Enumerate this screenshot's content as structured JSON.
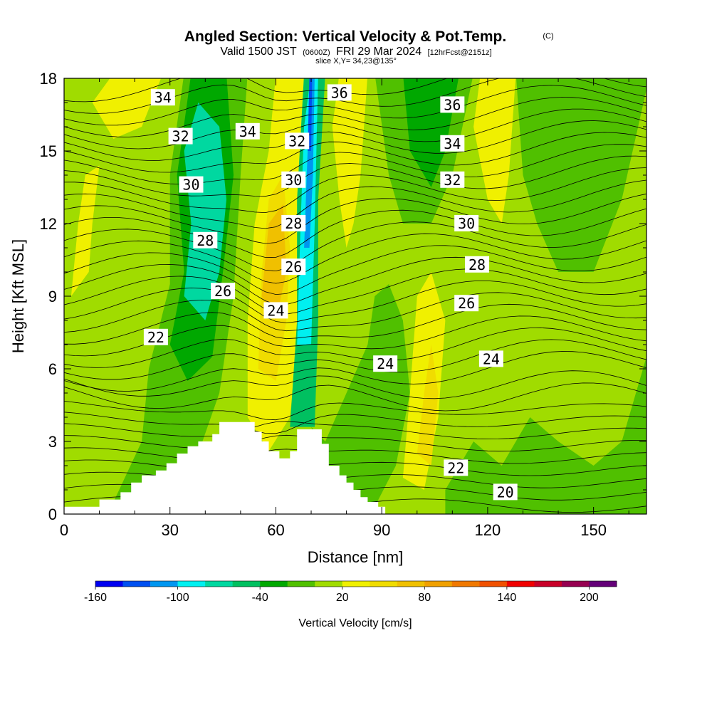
{
  "title": {
    "main": "Angled Section: Vertical Velocity & Pot.Temp.",
    "copyright": "(C)",
    "valid_prefix": "Valid 1500 JST",
    "valid_utc": "(0600Z)",
    "valid_date": "FRI 29 Mar 2024",
    "forecast": "[12hrFcst@2151z]",
    "slice": "slice X,Y= 34,23@135°"
  },
  "chart_data": {
    "type": "heatmap",
    "xlabel": "Distance [nm]",
    "ylabel": "Height [Kft MSL]",
    "xlim": [
      0,
      165
    ],
    "ylim": [
      0,
      18
    ],
    "x_ticks": [
      "0",
      "30",
      "60",
      "90",
      "120",
      "150"
    ],
    "y_ticks": [
      "0",
      "3",
      "6",
      "9",
      "12",
      "15",
      "18"
    ],
    "colorbar": {
      "label": "Vertical Velocity [cm/s]",
      "tick_labels": [
        "-160",
        "-100",
        "-40",
        "20",
        "80",
        "140",
        "200"
      ],
      "levels": [
        -160,
        -140,
        -120,
        -100,
        -80,
        -60,
        -40,
        -20,
        0,
        20,
        40,
        60,
        80,
        100,
        120,
        140,
        160,
        180,
        200,
        220
      ],
      "colors": [
        "#0000f0",
        "#0050f0",
        "#0096f0",
        "#00f0f0",
        "#00d8a0",
        "#00c060",
        "#00a800",
        "#50c000",
        "#a0dc00",
        "#f0f000",
        "#f0dc00",
        "#f0c000",
        "#f0a000",
        "#f07800",
        "#f05000",
        "#f00000",
        "#c80028",
        "#960050",
        "#640078"
      ]
    },
    "potential_temperature_contour_labels": [
      {
        "text": "34",
        "x": 28,
        "y": 17.2
      },
      {
        "text": "32",
        "x": 33,
        "y": 15.6
      },
      {
        "text": "30",
        "x": 36,
        "y": 13.6
      },
      {
        "text": "28",
        "x": 40,
        "y": 11.3
      },
      {
        "text": "26",
        "x": 45,
        "y": 9.2
      },
      {
        "text": "24",
        "x": 60,
        "y": 8.4
      },
      {
        "text": "22",
        "x": 26,
        "y": 7.3
      },
      {
        "text": "34",
        "x": 52,
        "y": 15.8
      },
      {
        "text": "32",
        "x": 66,
        "y": 15.4
      },
      {
        "text": "30",
        "x": 65,
        "y": 13.8
      },
      {
        "text": "28",
        "x": 65,
        "y": 12.0
      },
      {
        "text": "26",
        "x": 65,
        "y": 10.2
      },
      {
        "text": "36",
        "x": 78,
        "y": 17.4
      },
      {
        "text": "24",
        "x": 91,
        "y": 6.2
      },
      {
        "text": "36",
        "x": 110,
        "y": 16.9
      },
      {
        "text": "34",
        "x": 110,
        "y": 15.3
      },
      {
        "text": "32",
        "x": 110,
        "y": 13.8
      },
      {
        "text": "30",
        "x": 114,
        "y": 12.0
      },
      {
        "text": "28",
        "x": 117,
        "y": 10.3
      },
      {
        "text": "26",
        "x": 114,
        "y": 8.7
      },
      {
        "text": "24",
        "x": 121,
        "y": 6.4
      },
      {
        "text": "22",
        "x": 111,
        "y": 1.9
      },
      {
        "text": "20",
        "x": 125,
        "y": 0.9
      }
    ],
    "terrain_profile": {
      "x": [
        0,
        10,
        16,
        19,
        22,
        26,
        29,
        32,
        35,
        38,
        42,
        44,
        47,
        51,
        54,
        56,
        58,
        61,
        64,
        66,
        70,
        73,
        75,
        78,
        80,
        82,
        84,
        86,
        89,
        91
      ],
      "height": [
        0.3,
        0.6,
        0.9,
        1.3,
        1.6,
        1.8,
        2.1,
        2.5,
        2.8,
        3.0,
        3.3,
        3.8,
        3.8,
        3.8,
        3.4,
        3.0,
        2.6,
        2.3,
        2.6,
        3.5,
        3.5,
        2.9,
        2.0,
        1.6,
        1.3,
        1.0,
        0.7,
        0.5,
        0.3,
        0.3
      ]
    },
    "grid": false,
    "legend": "bottom"
  }
}
